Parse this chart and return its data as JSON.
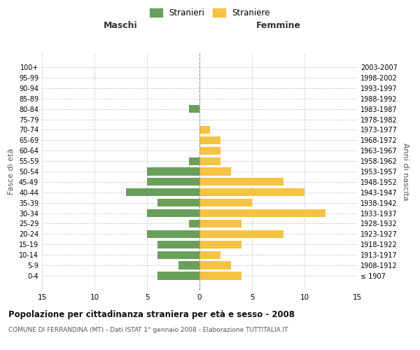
{
  "age_groups": [
    "100+",
    "95-99",
    "90-94",
    "85-89",
    "80-84",
    "75-79",
    "70-74",
    "65-69",
    "60-64",
    "55-59",
    "50-54",
    "45-49",
    "40-44",
    "35-39",
    "30-34",
    "25-29",
    "20-24",
    "15-19",
    "10-14",
    "5-9",
    "0-4"
  ],
  "birth_years": [
    "≤ 1907",
    "1908-1912",
    "1913-1917",
    "1918-1922",
    "1923-1927",
    "1928-1932",
    "1933-1937",
    "1938-1942",
    "1943-1947",
    "1948-1952",
    "1953-1957",
    "1958-1962",
    "1963-1967",
    "1968-1972",
    "1973-1977",
    "1978-1982",
    "1983-1987",
    "1988-1992",
    "1993-1997",
    "1998-2002",
    "2003-2007"
  ],
  "maschi": [
    0,
    0,
    0,
    0,
    1,
    0,
    0,
    0,
    0,
    1,
    5,
    5,
    7,
    4,
    5,
    1,
    5,
    4,
    4,
    2,
    4
  ],
  "femmine": [
    0,
    0,
    0,
    0,
    0,
    0,
    1,
    2,
    2,
    2,
    3,
    8,
    10,
    5,
    12,
    4,
    8,
    4,
    2,
    3,
    4
  ],
  "maschi_color": "#6a9f5b",
  "femmine_color": "#f5c242",
  "title": "Popolazione per cittadinanza straniera per età e sesso - 2008",
  "subtitle": "COMUNE DI FERRANDINA (MT) - Dati ISTAT 1° gennaio 2008 - Elaborazione TUTTITALIA.IT",
  "legend_maschi": "Stranieri",
  "legend_femmine": "Straniere",
  "xlabel_left": "Maschi",
  "xlabel_right": "Femmine",
  "ylabel_left": "Fasce di età",
  "ylabel_right": "Anni di nascita",
  "xlim": 15,
  "background_color": "#ffffff",
  "grid_color": "#cccccc"
}
